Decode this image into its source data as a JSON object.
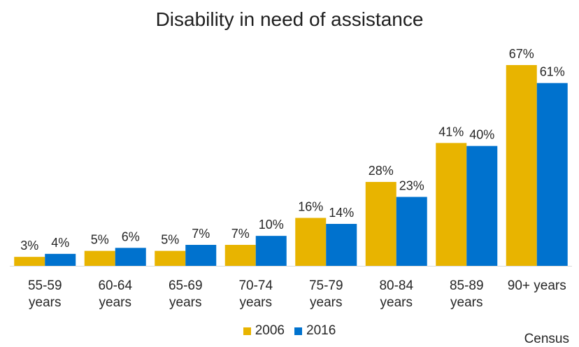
{
  "chart_data": {
    "type": "bar",
    "title": "Disability in need of assistance",
    "categories": [
      [
        "55-59",
        "years"
      ],
      [
        "60-64",
        "years"
      ],
      [
        "65-69",
        "years"
      ],
      [
        "70-74",
        "years"
      ],
      [
        "75-79",
        "years"
      ],
      [
        "80-84",
        "years"
      ],
      [
        "85-89",
        "years"
      ],
      [
        "90+ years"
      ]
    ],
    "series": [
      {
        "name": "2006",
        "color": "#E8B400",
        "values": [
          3,
          5,
          5,
          7,
          16,
          28,
          41,
          67
        ],
        "labels": [
          "3%",
          "5%",
          "5%",
          "7%",
          "16%",
          "28%",
          "41%",
          "67%"
        ]
      },
      {
        "name": "2016",
        "color": "#0072CE",
        "values": [
          4,
          6,
          7,
          10,
          14,
          23,
          40,
          61
        ],
        "labels": [
          "4%",
          "6%",
          "7%",
          "10%",
          "14%",
          "23%",
          "40%",
          "61%"
        ]
      }
    ],
    "ylim": [
      0,
      67
    ],
    "grid": false,
    "legend_position": "bottom"
  },
  "footnote": "Census"
}
